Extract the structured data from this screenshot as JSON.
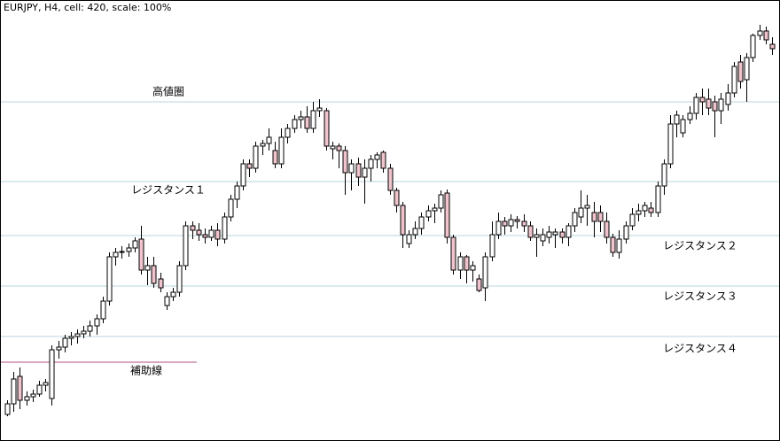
{
  "chart_data": {
    "type": "candlestick",
    "title": "EURJPY, H4, cell: 420, scale: 100%",
    "ylim": [
      0,
      490
    ],
    "up_color": "#ffffff",
    "down_color": "#f0c4cc",
    "levels": [
      {
        "label": "高値圏",
        "value": 375,
        "color": "#b8d4dc"
      },
      {
        "label": "レジスタンス１",
        "value": 285,
        "color": "#b8d4dc"
      },
      {
        "label": "レジスタンス２",
        "value": 224,
        "color": "#b8d4dc"
      },
      {
        "label": "レジスタンス３",
        "value": 167,
        "color": "#b8d4dc"
      },
      {
        "label": "レジスタンス４",
        "value": 110,
        "color": "#b8d4dc"
      },
      {
        "label": "補助線",
        "value": 81,
        "color": "#b05080"
      }
    ],
    "candles": [
      [
        22,
        38,
        20,
        34
      ],
      [
        34,
        70,
        25,
        62
      ],
      [
        65,
        75,
        28,
        38
      ],
      [
        38,
        48,
        32,
        42
      ],
      [
        42,
        50,
        36,
        45
      ],
      [
        45,
        60,
        42,
        55
      ],
      [
        55,
        62,
        48,
        58
      ],
      [
        40,
        100,
        32,
        95
      ],
      [
        95,
        105,
        85,
        98
      ],
      [
        98,
        112,
        92,
        108
      ],
      [
        108,
        115,
        100,
        110
      ],
      [
        110,
        118,
        102,
        113
      ],
      [
        113,
        122,
        108,
        116
      ],
      [
        116,
        128,
        110,
        122
      ],
      [
        122,
        135,
        112,
        130
      ],
      [
        130,
        155,
        125,
        150
      ],
      [
        150,
        205,
        145,
        200
      ],
      [
        200,
        210,
        190,
        205
      ],
      [
        205,
        212,
        198,
        206
      ],
      [
        206,
        215,
        200,
        210
      ],
      [
        210,
        222,
        205,
        218
      ],
      [
        220,
        235,
        180,
        185
      ],
      [
        185,
        200,
        168,
        190
      ],
      [
        190,
        200,
        165,
        170
      ],
      [
        175,
        182,
        160,
        165
      ],
      [
        145,
        160,
        140,
        155
      ],
      [
        155,
        165,
        150,
        160
      ],
      [
        160,
        195,
        155,
        190
      ],
      [
        190,
        240,
        185,
        235
      ],
      [
        235,
        240,
        220,
        230
      ],
      [
        230,
        238,
        218,
        225
      ],
      [
        225,
        232,
        215,
        222
      ],
      [
        222,
        235,
        218,
        230
      ],
      [
        230,
        238,
        212,
        220
      ],
      [
        220,
        250,
        215,
        245
      ],
      [
        245,
        270,
        240,
        265
      ],
      [
        265,
        285,
        255,
        280
      ],
      [
        280,
        310,
        275,
        305
      ],
      [
        305,
        310,
        290,
        300
      ],
      [
        300,
        330,
        295,
        325
      ],
      [
        325,
        332,
        315,
        328
      ],
      [
        328,
        345,
        320,
        335
      ],
      [
        320,
        330,
        300,
        305
      ],
      [
        305,
        345,
        300,
        335
      ],
      [
        335,
        350,
        328,
        345
      ],
      [
        345,
        360,
        340,
        355
      ],
      [
        355,
        365,
        345,
        358
      ],
      [
        358,
        370,
        340,
        345
      ],
      [
        345,
        375,
        340,
        365
      ],
      [
        365,
        378,
        358,
        368
      ],
      [
        365,
        368,
        320,
        325
      ],
      [
        322,
        330,
        310,
        325
      ],
      [
        325,
        328,
        300,
        320
      ],
      [
        320,
        325,
        270,
        295
      ],
      [
        295,
        310,
        275,
        305
      ],
      [
        305,
        312,
        280,
        290
      ],
      [
        290,
        310,
        260,
        300
      ],
      [
        300,
        315,
        285,
        310
      ],
      [
        310,
        318,
        300,
        315
      ],
      [
        318,
        320,
        295,
        300
      ],
      [
        300,
        305,
        270,
        275
      ],
      [
        275,
        278,
        250,
        258
      ],
      [
        258,
        262,
        210,
        225
      ],
      [
        215,
        230,
        210,
        225
      ],
      [
        225,
        240,
        220,
        232
      ],
      [
        232,
        250,
        225,
        245
      ],
      [
        245,
        258,
        240,
        252
      ],
      [
        252,
        260,
        238,
        255
      ],
      [
        255,
        275,
        250,
        270
      ],
      [
        272,
        276,
        215,
        222
      ],
      [
        222,
        225,
        180,
        185
      ],
      [
        185,
        205,
        175,
        200
      ],
      [
        200,
        202,
        170,
        185
      ],
      [
        185,
        195,
        172,
        190
      ],
      [
        175,
        180,
        160,
        162
      ],
      [
        165,
        205,
        150,
        200
      ],
      [
        200,
        240,
        195,
        225
      ],
      [
        225,
        250,
        220,
        240
      ],
      [
        240,
        245,
        225,
        235
      ],
      [
        235,
        248,
        228,
        242
      ],
      [
        242,
        246,
        232,
        240
      ],
      [
        240,
        248,
        228,
        235
      ],
      [
        235,
        240,
        218,
        222
      ],
      [
        222,
        232,
        200,
        225
      ],
      [
        218,
        232,
        212,
        225
      ],
      [
        222,
        235,
        215,
        228
      ],
      [
        225,
        232,
        210,
        228
      ],
      [
        228,
        232,
        215,
        222
      ],
      [
        222,
        238,
        212,
        235
      ],
      [
        235,
        255,
        228,
        250
      ],
      [
        245,
        275,
        238,
        255
      ],
      [
        255,
        270,
        235,
        258
      ],
      [
        250,
        262,
        222,
        240
      ],
      [
        250,
        258,
        228,
        240
      ],
      [
        240,
        250,
        215,
        222
      ],
      [
        222,
        226,
        200,
        205
      ],
      [
        205,
        230,
        198,
        220
      ],
      [
        220,
        240,
        215,
        235
      ],
      [
        235,
        255,
        230,
        248
      ],
      [
        248,
        260,
        240,
        252
      ],
      [
        252,
        262,
        245,
        258
      ],
      [
        255,
        262,
        245,
        250
      ],
      [
        250,
        285,
        245,
        280
      ],
      [
        280,
        310,
        270,
        305
      ],
      [
        305,
        360,
        300,
        350
      ],
      [
        350,
        365,
        335,
        360
      ],
      [
        340,
        360,
        335,
        355
      ],
      [
        355,
        370,
        350,
        362
      ],
      [
        362,
        385,
        355,
        380
      ],
      [
        380,
        390,
        360,
        375
      ],
      [
        378,
        390,
        360,
        368
      ],
      [
        375,
        382,
        335,
        365
      ],
      [
        365,
        385,
        350,
        378
      ],
      [
        372,
        395,
        365,
        385
      ],
      [
        385,
        420,
        380,
        415
      ],
      [
        420,
        428,
        390,
        398
      ],
      [
        400,
        430,
        375,
        425
      ],
      [
        425,
        452,
        420,
        450
      ],
      [
        450,
        462,
        445,
        455
      ],
      [
        455,
        460,
        440,
        445
      ],
      [
        440,
        448,
        428,
        435
      ]
    ]
  }
}
